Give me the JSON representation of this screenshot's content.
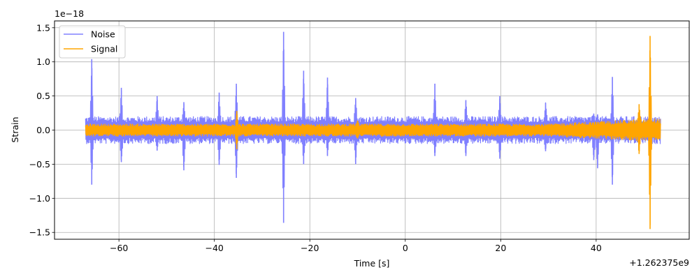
{
  "chart_data": {
    "type": "line",
    "xlabel": "Time [s]",
    "ylabel": "Strain",
    "x_offset_label": "+1.262375e9",
    "y_scale_label": "1e−18",
    "xlim": [
      -73.5,
      59.5
    ],
    "ylim": [
      -1.6,
      1.6
    ],
    "x_ticks": [
      -60,
      -40,
      -20,
      0,
      20,
      40
    ],
    "x_tick_labels": [
      "−60",
      "−40",
      "−20",
      "0",
      "20",
      "40"
    ],
    "y_ticks": [
      -1.5,
      -1.0,
      -0.5,
      0.0,
      0.5,
      1.0,
      1.5
    ],
    "y_tick_labels": [
      "−1.5",
      "−1.0",
      "−0.5",
      "0.0",
      "0.5",
      "1.0",
      "1.5"
    ],
    "grid": true,
    "legend_position": "top-left",
    "x_range_data": [
      -67,
      53.5
    ],
    "series": [
      {
        "name": "Noise",
        "color": "#8080ff",
        "typical_amplitude": 0.2,
        "peaks": [
          {
            "x": -65.7,
            "ymax": 1.04,
            "ymin": -0.8
          },
          {
            "x": -59.5,
            "ymax": 0.62,
            "ymin": -0.47
          },
          {
            "x": -52.0,
            "ymax": 0.5,
            "ymin": -0.3
          },
          {
            "x": -46.4,
            "ymax": 0.41,
            "ymin": -0.59
          },
          {
            "x": -39.0,
            "ymax": 0.55,
            "ymin": -0.51
          },
          {
            "x": -35.4,
            "ymax": 0.68,
            "ymin": -0.7
          },
          {
            "x": -25.5,
            "ymax": 1.44,
            "ymin": -1.36
          },
          {
            "x": -21.3,
            "ymax": 0.87,
            "ymin": -0.5
          },
          {
            "x": -16.3,
            "ymax": 0.77,
            "ymin": -0.38
          },
          {
            "x": -10.4,
            "ymax": 0.47,
            "ymin": -0.5
          },
          {
            "x": 6.2,
            "ymax": 0.68,
            "ymin": -0.38
          },
          {
            "x": 12.7,
            "ymax": 0.44,
            "ymin": -0.38
          },
          {
            "x": 19.8,
            "ymax": 0.5,
            "ymin": -0.42
          },
          {
            "x": 29.4,
            "ymax": 0.4,
            "ymin": -0.31
          },
          {
            "x": 39.5,
            "ymax": 0.24,
            "ymin": -0.44
          },
          {
            "x": 40.3,
            "ymax": 0.23,
            "ymin": -0.56
          },
          {
            "x": 43.4,
            "ymax": 0.78,
            "ymin": -0.8
          }
        ]
      },
      {
        "name": "Signal",
        "color": "#ffa500",
        "typical_amplitude": 0.09,
        "peaks": [
          {
            "x": -35.3,
            "ymax": 0.28,
            "ymin": -0.28
          },
          {
            "x": -10.0,
            "ymax": 0.14,
            "ymin": -0.12
          },
          {
            "x": 49.0,
            "ymax": 0.38,
            "ymin": -0.35
          },
          {
            "x": 51.3,
            "ymax": 1.38,
            "ymin": -1.45
          }
        ]
      }
    ]
  }
}
